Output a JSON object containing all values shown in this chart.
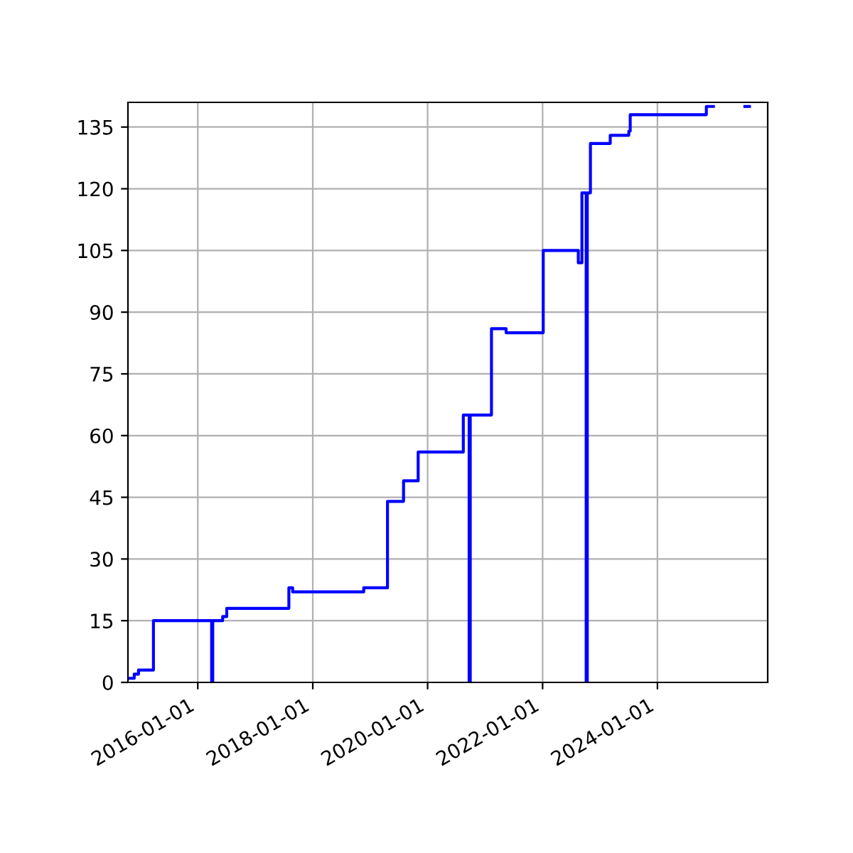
{
  "chart_data": {
    "type": "step",
    "x": [
      "2014-10-15",
      "2014-11-23",
      "2014-12-20",
      "2015-03-25",
      "2016-03-29",
      "2016-04-05",
      "2016-06-07",
      "2016-07-03",
      "2017-08-02",
      "2017-08-26",
      "2018-11-21",
      "2019-04-21",
      "2019-08-01",
      "2019-11-02",
      "2020-08-15",
      "2020-09-21",
      "2020-09-28",
      "2021-02-10",
      "2021-05-14",
      "2022-01-05",
      "2022-08-16",
      "2022-09-08",
      "2022-10-05",
      "2022-10-12",
      "2022-11-01",
      "2023-03-07",
      "2023-07-03",
      "2023-07-12",
      "2024-11-07",
      "2024-12-22"
    ],
    "series": [
      {
        "color": "#0000ff",
        "values": [
          1,
          2,
          3,
          15,
          0,
          15,
          16,
          18,
          23,
          22,
          23,
          44,
          49,
          56,
          65,
          0,
          65,
          86,
          85,
          105,
          102,
          119,
          0,
          119,
          131,
          133,
          134,
          138,
          140,
          140
        ]
      },
      {
        "x": [
          "2025-07-10",
          "2025-08-08"
        ],
        "color": "#0000ff",
        "values": [
          140,
          140
        ]
      }
    ],
    "xlim": [
      "2014-10-14",
      "2025-12-02"
    ],
    "xticks": [
      {
        "value": "2016-01-01",
        "label": "2016-01-01"
      },
      {
        "value": "2018-01-01",
        "label": "2018-01-01"
      },
      {
        "value": "2020-01-01",
        "label": "2020-01-01"
      },
      {
        "value": "2022-01-01",
        "label": "2022-01-01"
      },
      {
        "value": "2024-01-01",
        "label": "2024-01-01"
      }
    ],
    "ylim": [
      0,
      141
    ],
    "yticks": [
      0,
      15,
      30,
      45,
      60,
      75,
      90,
      105,
      120,
      135
    ],
    "grid": true,
    "line_style": "solid",
    "marker": "none"
  }
}
